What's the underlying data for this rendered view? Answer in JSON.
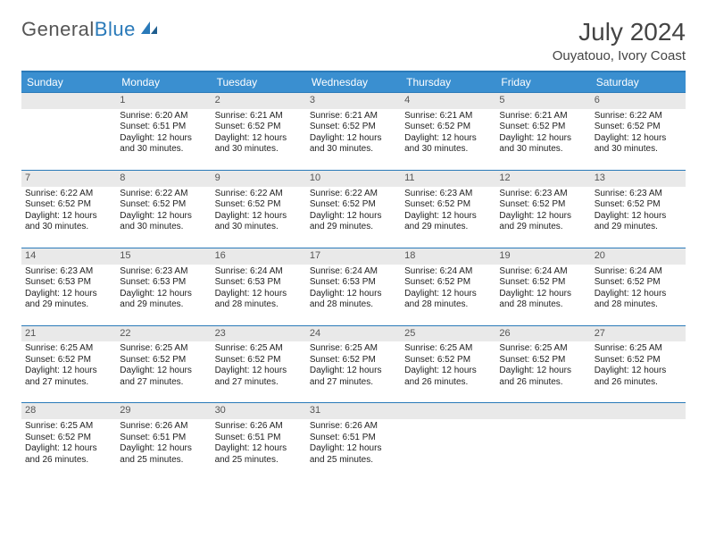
{
  "logo": {
    "text1": "General",
    "text2": "Blue"
  },
  "title": "July 2024",
  "location": "Ouyatouo, Ivory Coast",
  "colors": {
    "header_bg": "#3a8fd0",
    "header_fg": "#ffffff",
    "rule": "#2a7ab9",
    "daynum_bg": "#e9e9e9",
    "text": "#333333"
  },
  "weekdays": [
    "Sunday",
    "Monday",
    "Tuesday",
    "Wednesday",
    "Thursday",
    "Friday",
    "Saturday"
  ],
  "weeks": [
    [
      {
        "n": "",
        "lines": []
      },
      {
        "n": "1",
        "lines": [
          "Sunrise: 6:20 AM",
          "Sunset: 6:51 PM",
          "Daylight: 12 hours and 30 minutes."
        ]
      },
      {
        "n": "2",
        "lines": [
          "Sunrise: 6:21 AM",
          "Sunset: 6:52 PM",
          "Daylight: 12 hours and 30 minutes."
        ]
      },
      {
        "n": "3",
        "lines": [
          "Sunrise: 6:21 AM",
          "Sunset: 6:52 PM",
          "Daylight: 12 hours and 30 minutes."
        ]
      },
      {
        "n": "4",
        "lines": [
          "Sunrise: 6:21 AM",
          "Sunset: 6:52 PM",
          "Daylight: 12 hours and 30 minutes."
        ]
      },
      {
        "n": "5",
        "lines": [
          "Sunrise: 6:21 AM",
          "Sunset: 6:52 PM",
          "Daylight: 12 hours and 30 minutes."
        ]
      },
      {
        "n": "6",
        "lines": [
          "Sunrise: 6:22 AM",
          "Sunset: 6:52 PM",
          "Daylight: 12 hours and 30 minutes."
        ]
      }
    ],
    [
      {
        "n": "7",
        "lines": [
          "Sunrise: 6:22 AM",
          "Sunset: 6:52 PM",
          "Daylight: 12 hours and 30 minutes."
        ]
      },
      {
        "n": "8",
        "lines": [
          "Sunrise: 6:22 AM",
          "Sunset: 6:52 PM",
          "Daylight: 12 hours and 30 minutes."
        ]
      },
      {
        "n": "9",
        "lines": [
          "Sunrise: 6:22 AM",
          "Sunset: 6:52 PM",
          "Daylight: 12 hours and 30 minutes."
        ]
      },
      {
        "n": "10",
        "lines": [
          "Sunrise: 6:22 AM",
          "Sunset: 6:52 PM",
          "Daylight: 12 hours and 29 minutes."
        ]
      },
      {
        "n": "11",
        "lines": [
          "Sunrise: 6:23 AM",
          "Sunset: 6:52 PM",
          "Daylight: 12 hours and 29 minutes."
        ]
      },
      {
        "n": "12",
        "lines": [
          "Sunrise: 6:23 AM",
          "Sunset: 6:52 PM",
          "Daylight: 12 hours and 29 minutes."
        ]
      },
      {
        "n": "13",
        "lines": [
          "Sunrise: 6:23 AM",
          "Sunset: 6:52 PM",
          "Daylight: 12 hours and 29 minutes."
        ]
      }
    ],
    [
      {
        "n": "14",
        "lines": [
          "Sunrise: 6:23 AM",
          "Sunset: 6:53 PM",
          "Daylight: 12 hours and 29 minutes."
        ]
      },
      {
        "n": "15",
        "lines": [
          "Sunrise: 6:23 AM",
          "Sunset: 6:53 PM",
          "Daylight: 12 hours and 29 minutes."
        ]
      },
      {
        "n": "16",
        "lines": [
          "Sunrise: 6:24 AM",
          "Sunset: 6:53 PM",
          "Daylight: 12 hours and 28 minutes."
        ]
      },
      {
        "n": "17",
        "lines": [
          "Sunrise: 6:24 AM",
          "Sunset: 6:53 PM",
          "Daylight: 12 hours and 28 minutes."
        ]
      },
      {
        "n": "18",
        "lines": [
          "Sunrise: 6:24 AM",
          "Sunset: 6:52 PM",
          "Daylight: 12 hours and 28 minutes."
        ]
      },
      {
        "n": "19",
        "lines": [
          "Sunrise: 6:24 AM",
          "Sunset: 6:52 PM",
          "Daylight: 12 hours and 28 minutes."
        ]
      },
      {
        "n": "20",
        "lines": [
          "Sunrise: 6:24 AM",
          "Sunset: 6:52 PM",
          "Daylight: 12 hours and 28 minutes."
        ]
      }
    ],
    [
      {
        "n": "21",
        "lines": [
          "Sunrise: 6:25 AM",
          "Sunset: 6:52 PM",
          "Daylight: 12 hours and 27 minutes."
        ]
      },
      {
        "n": "22",
        "lines": [
          "Sunrise: 6:25 AM",
          "Sunset: 6:52 PM",
          "Daylight: 12 hours and 27 minutes."
        ]
      },
      {
        "n": "23",
        "lines": [
          "Sunrise: 6:25 AM",
          "Sunset: 6:52 PM",
          "Daylight: 12 hours and 27 minutes."
        ]
      },
      {
        "n": "24",
        "lines": [
          "Sunrise: 6:25 AM",
          "Sunset: 6:52 PM",
          "Daylight: 12 hours and 27 minutes."
        ]
      },
      {
        "n": "25",
        "lines": [
          "Sunrise: 6:25 AM",
          "Sunset: 6:52 PM",
          "Daylight: 12 hours and 26 minutes."
        ]
      },
      {
        "n": "26",
        "lines": [
          "Sunrise: 6:25 AM",
          "Sunset: 6:52 PM",
          "Daylight: 12 hours and 26 minutes."
        ]
      },
      {
        "n": "27",
        "lines": [
          "Sunrise: 6:25 AM",
          "Sunset: 6:52 PM",
          "Daylight: 12 hours and 26 minutes."
        ]
      }
    ],
    [
      {
        "n": "28",
        "lines": [
          "Sunrise: 6:25 AM",
          "Sunset: 6:52 PM",
          "Daylight: 12 hours and 26 minutes."
        ]
      },
      {
        "n": "29",
        "lines": [
          "Sunrise: 6:26 AM",
          "Sunset: 6:51 PM",
          "Daylight: 12 hours and 25 minutes."
        ]
      },
      {
        "n": "30",
        "lines": [
          "Sunrise: 6:26 AM",
          "Sunset: 6:51 PM",
          "Daylight: 12 hours and 25 minutes."
        ]
      },
      {
        "n": "31",
        "lines": [
          "Sunrise: 6:26 AM",
          "Sunset: 6:51 PM",
          "Daylight: 12 hours and 25 minutes."
        ]
      },
      {
        "n": "",
        "lines": []
      },
      {
        "n": "",
        "lines": []
      },
      {
        "n": "",
        "lines": []
      }
    ]
  ]
}
